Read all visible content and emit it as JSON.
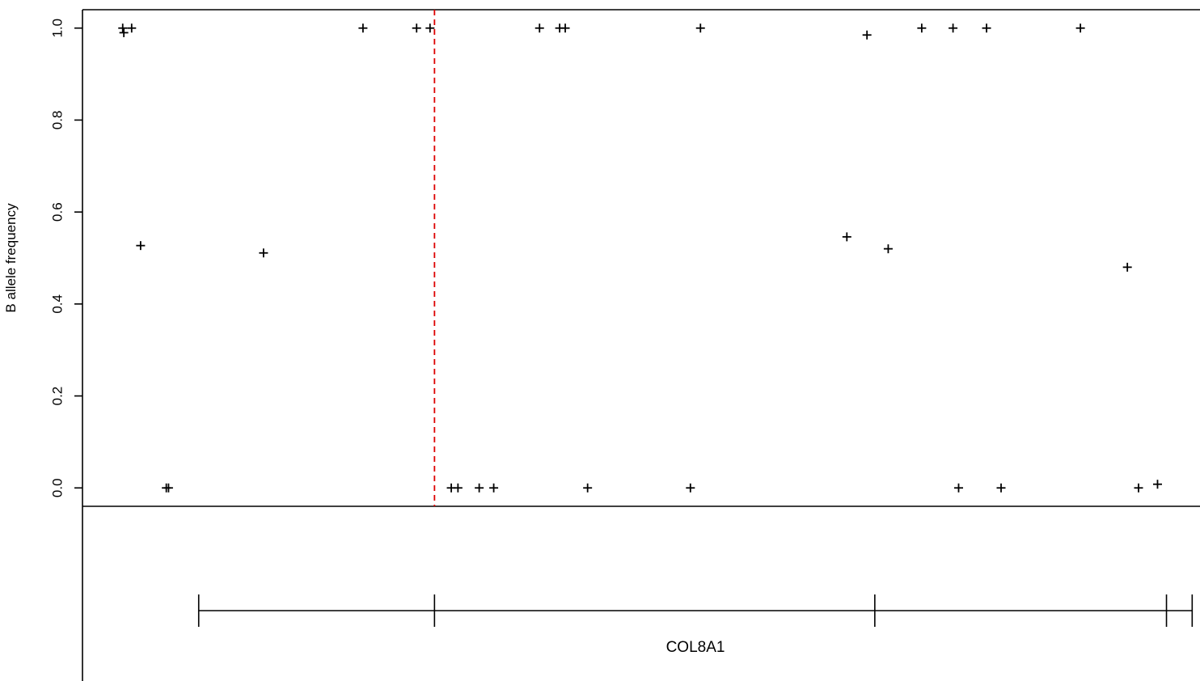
{
  "chart_data": {
    "type": "scatter",
    "title": "",
    "xlabel": "",
    "ylabel": "B allele frequency",
    "ylim": [
      -0.04,
      1.04
    ],
    "yticks": [
      0.0,
      0.2,
      0.4,
      0.6,
      0.8,
      1.0
    ],
    "ytick_labels": [
      "0.0",
      "0.2",
      "0.4",
      "0.6",
      "0.8",
      "1.0"
    ],
    "xlim": [
      0,
      1000
    ],
    "x_axis_shown": false,
    "grid": false,
    "marker_symbol": "+",
    "marker_color": "#000000",
    "points": [
      {
        "x": 36,
        "y": 1.0
      },
      {
        "x": 37,
        "y": 0.99
      },
      {
        "x": 44,
        "y": 1.0
      },
      {
        "x": 52,
        "y": 0.527
      },
      {
        "x": 75,
        "y": 0.0
      },
      {
        "x": 77,
        "y": 0.0
      },
      {
        "x": 162,
        "y": 0.511
      },
      {
        "x": 251,
        "y": 1.0
      },
      {
        "x": 299,
        "y": 1.0
      },
      {
        "x": 311,
        "y": 1.0
      },
      {
        "x": 330,
        "y": 0.0
      },
      {
        "x": 336,
        "y": 0.0
      },
      {
        "x": 355,
        "y": 0.0
      },
      {
        "x": 368,
        "y": 0.0
      },
      {
        "x": 409,
        "y": 1.0
      },
      {
        "x": 427,
        "y": 1.0
      },
      {
        "x": 432,
        "y": 1.0
      },
      {
        "x": 452,
        "y": 0.0
      },
      {
        "x": 544,
        "y": 0.0
      },
      {
        "x": 553,
        "y": 1.0
      },
      {
        "x": 684,
        "y": 0.546
      },
      {
        "x": 702,
        "y": 0.985
      },
      {
        "x": 721,
        "y": 0.52
      },
      {
        "x": 751,
        "y": 1.0
      },
      {
        "x": 779,
        "y": 1.0
      },
      {
        "x": 784,
        "y": 0.0
      },
      {
        "x": 809,
        "y": 1.0
      },
      {
        "x": 822,
        "y": 0.0
      },
      {
        "x": 893,
        "y": 1.0
      },
      {
        "x": 935,
        "y": 0.48
      },
      {
        "x": 945,
        "y": 0.0
      },
      {
        "x": 962,
        "y": 0.008
      }
    ],
    "reference_line": {
      "x": 315,
      "color": "#dd0000",
      "style": "dashed"
    },
    "gene_track": {
      "label": "COL8A1",
      "start": 104,
      "end": 993,
      "feature_marks": [
        104,
        315,
        709,
        970,
        993
      ]
    }
  }
}
